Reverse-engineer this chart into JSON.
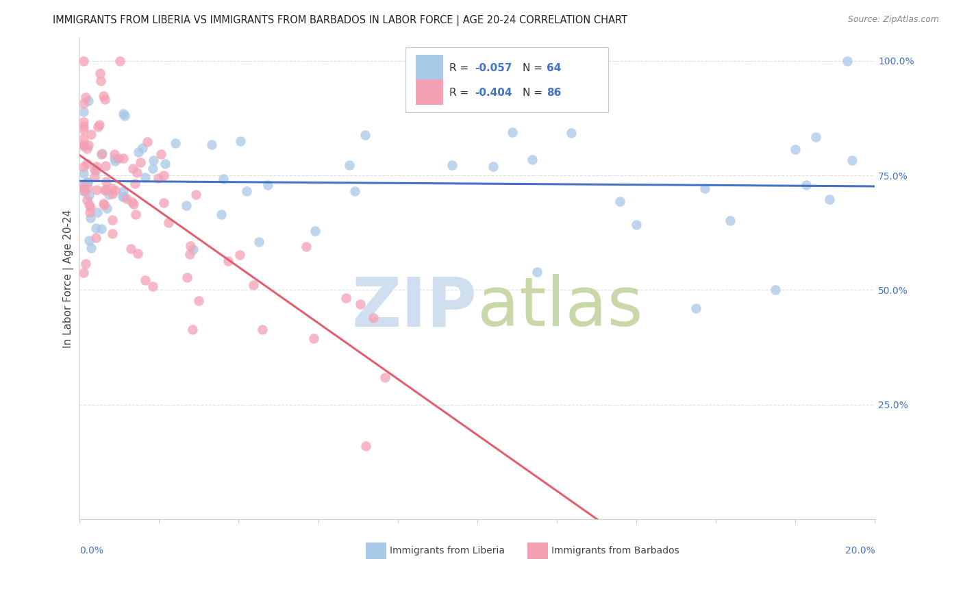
{
  "title": "IMMIGRANTS FROM LIBERIA VS IMMIGRANTS FROM BARBADOS IN LABOR FORCE | AGE 20-24 CORRELATION CHART",
  "source": "Source: ZipAtlas.com",
  "ylabel": "In Labor Force | Age 20-24",
  "legend_liberia": "Immigrants from Liberia",
  "legend_barbados": "Immigrants from Barbados",
  "R_liberia": -0.057,
  "N_liberia": 64,
  "R_barbados": -0.404,
  "N_barbados": 86,
  "color_liberia": "#a8c8e8",
  "color_barbados": "#f4a0b4",
  "trend_liberia": "#4472c4",
  "trend_barbados": "#e06070",
  "watermark_zip": "#d0dff0",
  "watermark_atlas": "#c8d8a8",
  "xlim": [
    0.0,
    0.2
  ],
  "ylim": [
    0.0,
    1.05
  ],
  "ytick_vals": [
    0.0,
    0.25,
    0.5,
    0.75,
    1.0
  ],
  "ytick_labels": [
    "",
    "25.0%",
    "50.0%",
    "75.0%",
    "100.0%"
  ],
  "legend_box_color": "#f0f4f8",
  "legend_text_color": "#4472c4",
  "grid_color": "#dddddd",
  "spine_color": "#cccccc"
}
